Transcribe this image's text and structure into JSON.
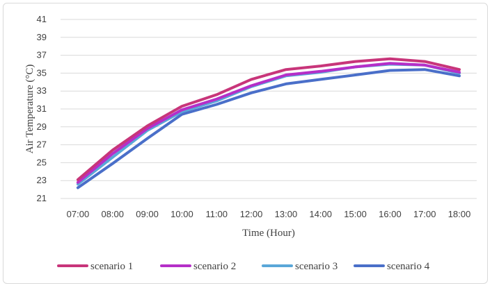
{
  "chart_data": {
    "type": "line",
    "xlabel": "Time (Hour)",
    "ylabel": "Air Temperature (°C)",
    "ylim": [
      21,
      41
    ],
    "yticks": [
      21,
      23,
      25,
      27,
      29,
      31,
      33,
      35,
      37,
      39,
      41
    ],
    "categories": [
      "07:00",
      "08:00",
      "09:00",
      "10:00",
      "11:00",
      "12:00",
      "13:00",
      "14:00",
      "15:00",
      "16:00",
      "17:00",
      "18:00"
    ],
    "grid": true,
    "legend_position": "bottom",
    "series": [
      {
        "name": "scenario 1",
        "color": "#c8357a",
        "values": [
          23.1,
          26.4,
          29.1,
          31.3,
          32.6,
          34.3,
          35.4,
          35.8,
          36.3,
          36.6,
          36.3,
          35.4
        ]
      },
      {
        "name": "scenario 2",
        "color": "#b52fc8",
        "values": [
          22.8,
          26.0,
          28.8,
          30.9,
          32.1,
          33.6,
          34.8,
          35.2,
          35.7,
          36.1,
          35.9,
          35.1
        ]
      },
      {
        "name": "scenario 3",
        "color": "#5aa7d8",
        "values": [
          22.6,
          25.6,
          28.6,
          30.7,
          31.9,
          33.5,
          34.7,
          35.1,
          35.7,
          36.0,
          35.9,
          35.0
        ]
      },
      {
        "name": "scenario 4",
        "color": "#4a6fc9",
        "values": [
          22.2,
          24.9,
          27.7,
          30.4,
          31.5,
          32.8,
          33.8,
          34.3,
          34.8,
          35.3,
          35.4,
          34.7
        ]
      }
    ]
  }
}
